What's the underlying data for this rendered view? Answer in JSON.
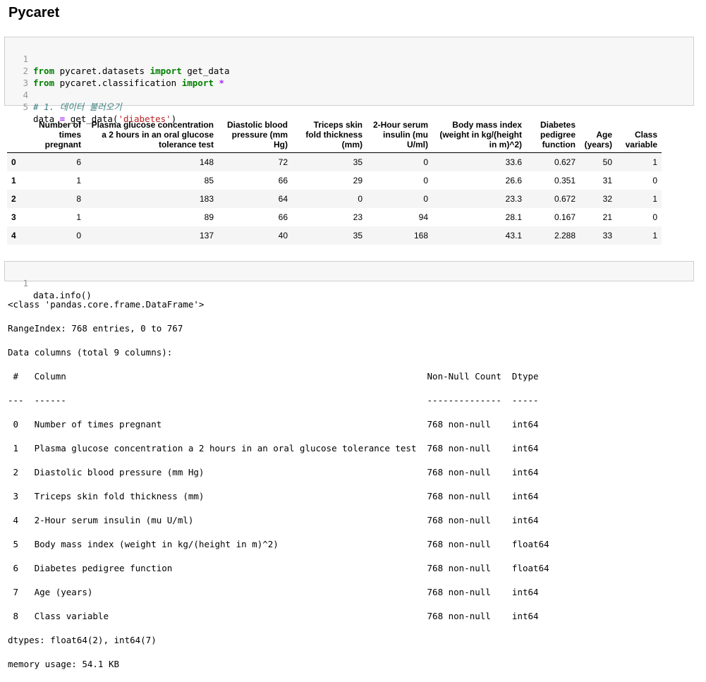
{
  "heading": "Pycaret",
  "cell1": {
    "line_numbers": [
      "1",
      "2",
      "3",
      "4",
      "5"
    ],
    "l1": {
      "kw1": "from",
      "mod": " pycaret.datasets ",
      "kw2": "import",
      "rest": " get_data"
    },
    "l2": {
      "kw1": "from",
      "mod": " pycaret.classification ",
      "kw2": "import",
      "op": " *"
    },
    "l4_comment": "# 1. 데이터 불러오기",
    "l5": {
      "pre": "data ",
      "op": "=",
      "mid": " get_data(",
      "str": "'diabetes'",
      "post": ")"
    }
  },
  "table": {
    "columns": [
      "",
      "Number of times pregnant",
      "Plasma glucose concentration a 2 hours in an oral glucose tolerance test",
      "Diastolic blood pressure (mm Hg)",
      "Triceps skin fold thickness (mm)",
      "2-Hour serum insulin (mu U/ml)",
      "Body mass index (weight in kg/(height in m)^2)",
      "Diabetes pedigree function",
      "Age (years)",
      "Class variable"
    ],
    "rows": [
      [
        "0",
        "6",
        "148",
        "72",
        "35",
        "0",
        "33.6",
        "0.627",
        "50",
        "1"
      ],
      [
        "1",
        "1",
        "85",
        "66",
        "29",
        "0",
        "26.6",
        "0.351",
        "31",
        "0"
      ],
      [
        "2",
        "8",
        "183",
        "64",
        "0",
        "0",
        "23.3",
        "0.672",
        "32",
        "1"
      ],
      [
        "3",
        "1",
        "89",
        "66",
        "23",
        "94",
        "28.1",
        "0.167",
        "21",
        "0"
      ],
      [
        "4",
        "0",
        "137",
        "40",
        "35",
        "168",
        "43.1",
        "2.288",
        "33",
        "1"
      ]
    ]
  },
  "cell2": {
    "line_number": "1",
    "code": "data.info()"
  },
  "output": {
    "lines": [
      "<class 'pandas.core.frame.DataFrame'>",
      "RangeIndex: 768 entries, 0 to 767",
      "Data columns (total 9 columns):",
      " #   Column                                                                    Non-Null Count  Dtype  ",
      "---  ------                                                                    --------------  -----  ",
      " 0   Number of times pregnant                                                  768 non-null    int64  ",
      " 1   Plasma glucose concentration a 2 hours in an oral glucose tolerance test  768 non-null    int64  ",
      " 2   Diastolic blood pressure (mm Hg)                                          768 non-null    int64  ",
      " 3   Triceps skin fold thickness (mm)                                          768 non-null    int64  ",
      " 4   2-Hour serum insulin (mu U/ml)                                            768 non-null    int64  ",
      " 5   Body mass index (weight in kg/(height in m)^2)                            768 non-null    float64",
      " 6   Diabetes pedigree function                                                768 non-null    float64",
      " 7   Age (years)                                                               768 non-null    int64  ",
      " 8   Class variable                                                            768 non-null    int64  ",
      "dtypes: float64(2), int64(7)",
      "memory usage: 54.1 KB"
    ]
  }
}
